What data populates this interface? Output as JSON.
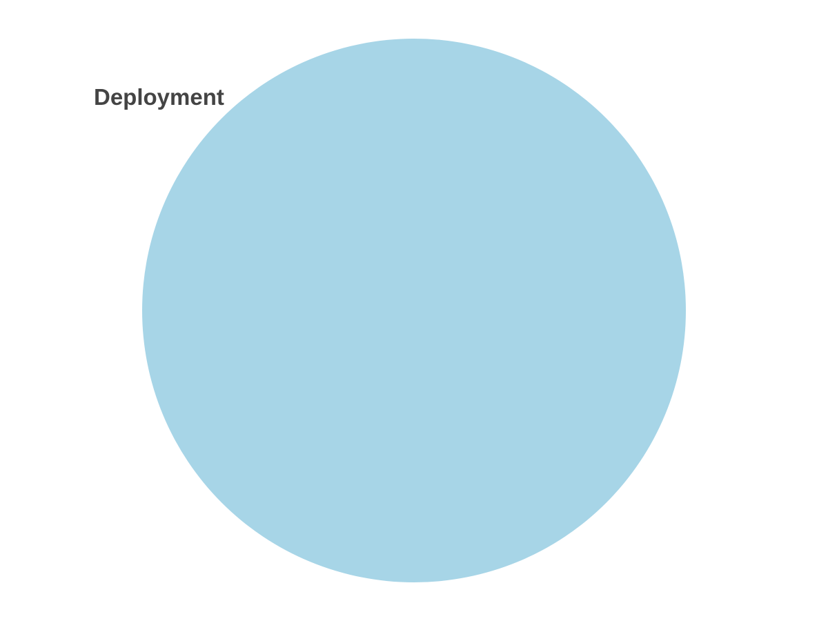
{
  "diagram": {
    "type": "venn",
    "sets": [
      {
        "label": "Deployment",
        "color": "#a7d5e7",
        "label_color": "#444444"
      }
    ]
  }
}
